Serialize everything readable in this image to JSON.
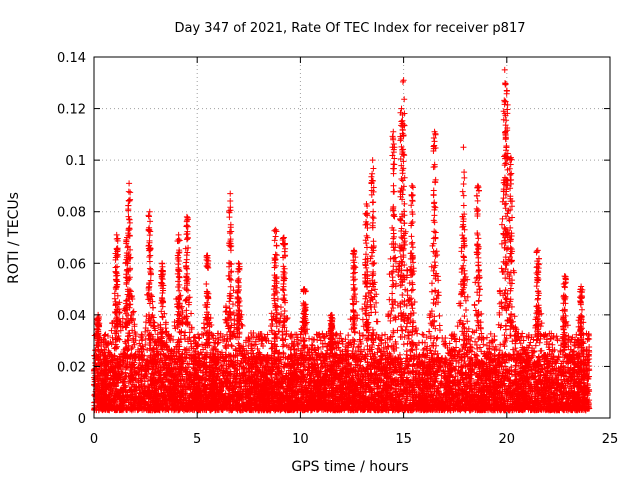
{
  "chart_data": {
    "type": "scatter",
    "title": "Day 347 of 2021, Rate Of TEC Index for receiver p817",
    "xlabel": "GPS time / hours",
    "ylabel": "ROTI / TECUs",
    "xlim": [
      0,
      25
    ],
    "ylim": [
      0,
      0.14
    ],
    "x_ticks": [
      "0",
      "5",
      "10",
      "15",
      "20",
      "25"
    ],
    "y_ticks": [
      "0",
      "0.02",
      "0.04",
      "0.06",
      "0.08",
      "0.1",
      "0.12",
      "0.14"
    ],
    "grid": true,
    "marker": "+",
    "color": "#ff0000",
    "x_coverage": [
      0,
      24
    ],
    "baseline_band": [
      0.003,
      0.025
    ],
    "spikes": [
      {
        "x": 0.2,
        "y": 0.04
      },
      {
        "x": 1.1,
        "y": 0.071
      },
      {
        "x": 1.6,
        "y": 0.07
      },
      {
        "x": 1.7,
        "y": 0.091
      },
      {
        "x": 2.7,
        "y": 0.08
      },
      {
        "x": 3.3,
        "y": 0.06
      },
      {
        "x": 4.1,
        "y": 0.071
      },
      {
        "x": 4.5,
        "y": 0.078
      },
      {
        "x": 5.5,
        "y": 0.063
      },
      {
        "x": 6.6,
        "y": 0.087
      },
      {
        "x": 7.0,
        "y": 0.06
      },
      {
        "x": 8.8,
        "y": 0.073
      },
      {
        "x": 9.2,
        "y": 0.07
      },
      {
        "x": 10.2,
        "y": 0.05
      },
      {
        "x": 11.5,
        "y": 0.04
      },
      {
        "x": 12.6,
        "y": 0.065
      },
      {
        "x": 13.2,
        "y": 0.083
      },
      {
        "x": 13.5,
        "y": 0.1
      },
      {
        "x": 14.5,
        "y": 0.111
      },
      {
        "x": 14.9,
        "y": 0.12
      },
      {
        "x": 15.0,
        "y": 0.131
      },
      {
        "x": 15.4,
        "y": 0.09
      },
      {
        "x": 16.5,
        "y": 0.111
      },
      {
        "x": 17.9,
        "y": 0.105
      },
      {
        "x": 18.6,
        "y": 0.09
      },
      {
        "x": 19.9,
        "y": 0.135
      },
      {
        "x": 20.0,
        "y": 0.127
      },
      {
        "x": 20.2,
        "y": 0.101
      },
      {
        "x": 21.5,
        "y": 0.065
      },
      {
        "x": 22.8,
        "y": 0.055
      },
      {
        "x": 23.6,
        "y": 0.051
      }
    ]
  }
}
